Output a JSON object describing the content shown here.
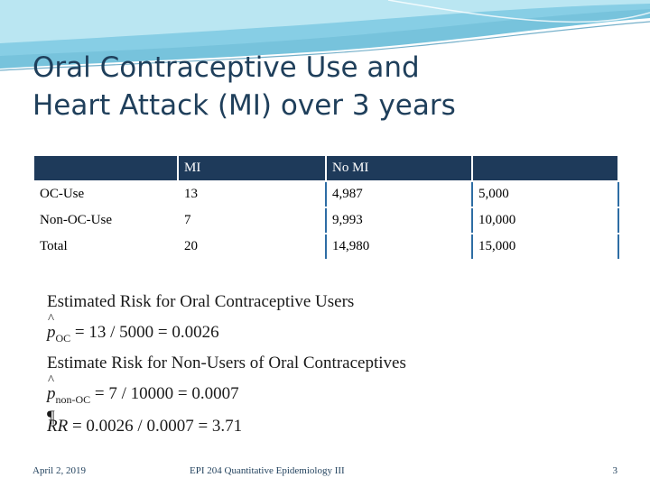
{
  "slide": {
    "title_line1": "Oral Contraceptive Use and",
    "title_line2": "Heart Attack (MI) over 3 years"
  },
  "table": {
    "header": [
      "",
      "MI",
      "No MI",
      ""
    ],
    "rows": [
      [
        "OC-Use",
        "13",
        "4,987",
        "5,000"
      ],
      [
        "Non-OC-Use",
        "7",
        "9,993",
        "10,000"
      ],
      [
        "Total",
        "20",
        "14,980",
        "15,000"
      ]
    ]
  },
  "formula": {
    "line1": "Estimated Risk for Oral Contraceptive Users",
    "line2_symbol": "p",
    "line2_sub": "OC",
    "line2_expr": "= 13 / 5000 = 0.0026",
    "line3": "Estimate Risk for Non-Users of Oral Contraceptives",
    "line4_symbol": "p",
    "line4_sub": "non-OC",
    "line4_expr": "= 7 / 10000 = 0.0007",
    "line5_symbol": "RR",
    "line5_expr": "= 0.0026 / 0.0007 = 3.71",
    "mark": "¶"
  },
  "footer": {
    "date": "April 2, 2019",
    "course": "EPI 204 Quantitative Epidemiology III",
    "page": "3"
  },
  "colors": {
    "title": "#1f3f5b",
    "header_fill": "#1e3a5a",
    "accent": "#2e6da4"
  }
}
